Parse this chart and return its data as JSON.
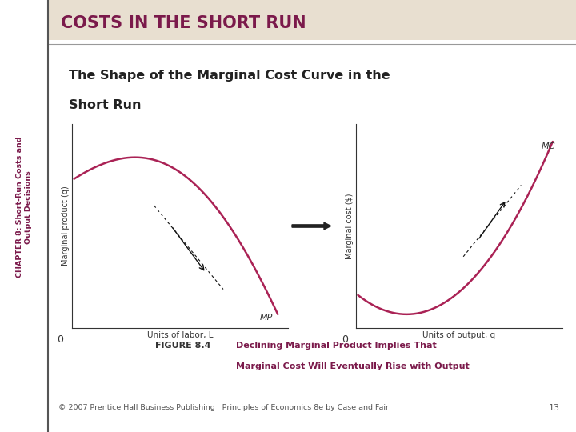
{
  "title_bar_text": "COSTS IN THE SHORT RUN",
  "title_bar_color": "#e8dfd0",
  "title_text_color": "#7b1a4b",
  "subtitle_line1": "The Shape of the Marginal Cost Curve in the",
  "subtitle_line2": "Short Run",
  "subtitle_color": "#222222",
  "left_ylabel": "Marginal product (q)",
  "left_xlabel": "Units of labor, L",
  "right_ylabel": "Marginal cost ($)",
  "right_xlabel": "Units of output, q",
  "curve_color": "#aa2255",
  "figure_bg": "#ffffff",
  "panel_bg": "#ffffff",
  "chapter_text_line1": "CHAPTER 8: Short-Run Costs and",
  "chapter_text_line2": "Output Decisions",
  "chapter_text_color": "#7b1a4b",
  "figure_caption_bold": "FIGURE 8.4",
  "figure_caption_color_bold": "#333333",
  "figure_caption_line1": "Declining Marginal Product Implies That",
  "figure_caption_line2": "Marginal Cost Will Eventually Rise with Output",
  "figure_caption_text_color": "#7b1a4b",
  "figure_caption_bg": "#d4c98a",
  "footer_text": "© 2007 Prentice Hall Business Publishing   Principles of Economics 8e by Case and Fair",
  "footer_page": "13",
  "axis_color": "#333333",
  "mp_label": "MP",
  "mc_label": "MC",
  "sidebar_line_color": "#555555",
  "separator_line_color": "#999999"
}
